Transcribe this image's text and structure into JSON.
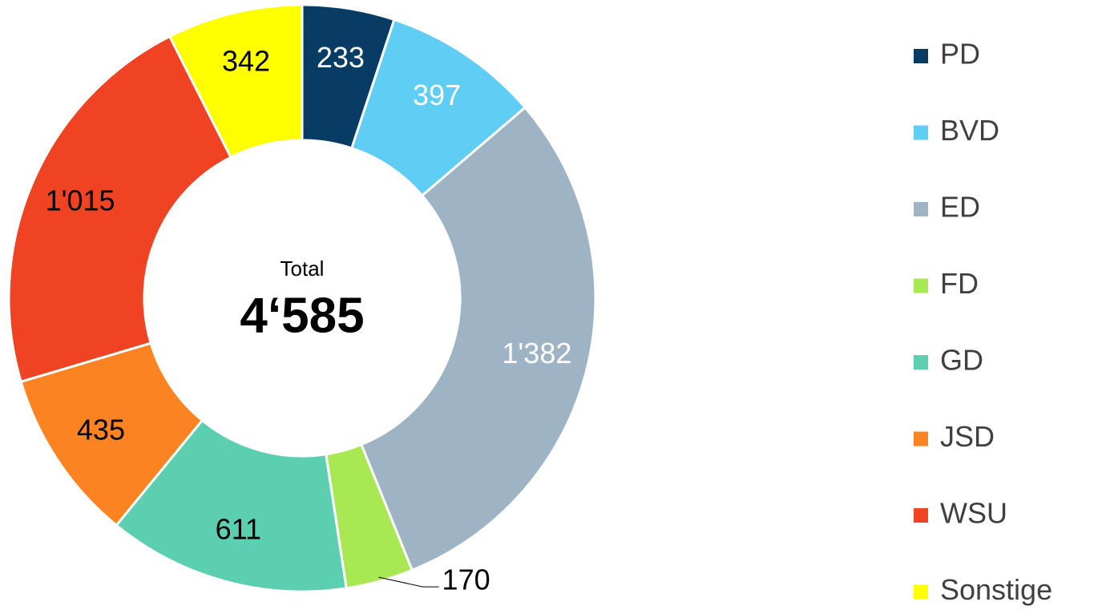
{
  "chart_data": {
    "type": "donut",
    "categories": [
      "PD",
      "BVD",
      "ED",
      "FD",
      "GD",
      "JSD",
      "WSU",
      "Sonstige"
    ],
    "values": [
      233,
      397,
      1382,
      170,
      611,
      435,
      1015,
      342
    ],
    "value_labels": [
      "233",
      "397",
      "1'382",
      "170",
      "611",
      "435",
      "1'015",
      "342"
    ],
    "colors": [
      "#083c64",
      "#5fcdf4",
      "#9eb3c3",
      "#a8e852",
      "#5dcfb1",
      "#fb8322",
      "#f04324",
      "#ffff00"
    ],
    "label_colors": [
      "#ffffff",
      "#ffffff",
      "#ffffff",
      "#000000",
      "#000000",
      "#000000",
      "#000000",
      "#000000"
    ],
    "center_title": "Total",
    "center_value": "4‘585",
    "legend": "right"
  }
}
